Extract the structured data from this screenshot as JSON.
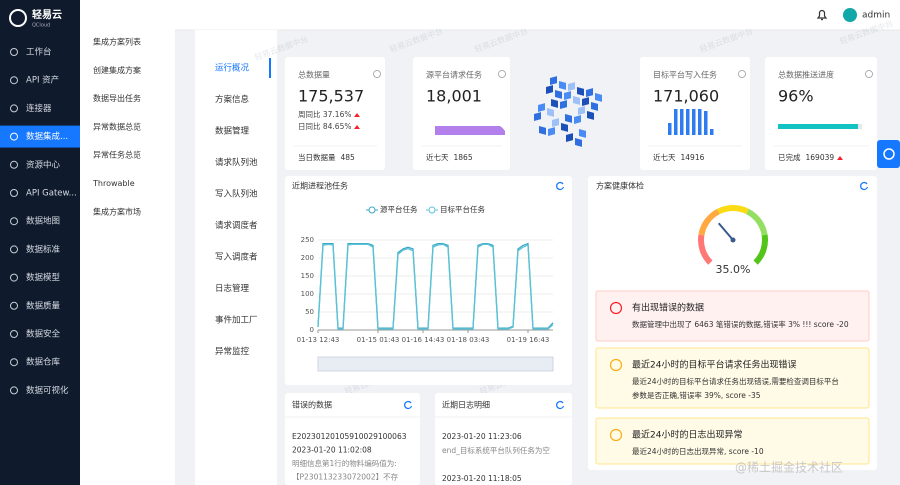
{
  "sidebar": {
    "logo": "轻易云",
    "logo_sub": "QCloud",
    "active": 3,
    "items": [
      "工作台",
      "API 资产",
      "连接器",
      "数据集成...",
      "资源中心",
      "API Gatew...",
      "数据地图",
      "数据标准",
      "数据模型",
      "数据质量",
      "数据安全",
      "数据仓库",
      "数据可视化"
    ]
  },
  "submenu": [
    "集成方案列表",
    "创建集成方案",
    "数据导出任务",
    "异常数据总览",
    "异常任务总览",
    "Throwable",
    "集成方案市场"
  ],
  "topbar": {
    "user": "admin"
  },
  "nav": {
    "active": 0,
    "items": [
      "运行概况",
      "方案信息",
      "数据管理",
      "请求队列池",
      "写入队列池",
      "请求调度者",
      "写入调度者",
      "日志管理",
      "事件加工厂",
      "异常监控"
    ]
  },
  "watermark": "轻易云数据中台",
  "stats": [
    {
      "title": "总数据量",
      "value": "175,537",
      "lines": [
        "周同比 37.16%",
        "日同比 84.65%"
      ],
      "footer_label": "当日数据量",
      "footer_value": "485"
    },
    {
      "title": "源平台请求任务",
      "value": "18,001",
      "footer_label": "近七天",
      "footer_value": "1865"
    },
    {
      "title": "目标平台写入任务",
      "value": "171,060",
      "footer_label": "近七天",
      "footer_value": "14916"
    },
    {
      "title": "总数据推送进度",
      "value": "96%",
      "footer_label": "已完成",
      "footer_value": "169039"
    }
  ],
  "chart_data": [
    {
      "type": "line",
      "title": "近期进程池任务",
      "categories": [
        "01-13 12:43",
        null,
        null,
        null,
        null,
        null,
        null,
        null,
        null,
        null,
        null,
        null,
        "01-15 01:43",
        null,
        null,
        null,
        null,
        null,
        null,
        null,
        null,
        "01-16 14:43",
        null,
        null,
        null,
        null,
        null,
        null,
        null,
        null,
        "01-18 03:43",
        null,
        null,
        null,
        null,
        null,
        null,
        null,
        null,
        null,
        null,
        null,
        "01-19 16:43",
        null,
        null,
        null,
        null,
        null
      ],
      "series": [
        {
          "name": "源平台任务",
          "color": "#3ba7c4",
          "values": [
            10,
            240,
            240,
            240,
            5,
            5,
            240,
            240,
            240,
            240,
            240,
            235,
            5,
            5,
            5,
            5,
            215,
            225,
            230,
            225,
            5,
            5,
            5,
            235,
            240,
            240,
            235,
            5,
            5,
            5,
            5,
            5,
            235,
            240,
            240,
            235,
            5,
            5,
            5,
            10,
            225,
            235,
            240,
            5,
            5,
            5,
            5,
            20
          ]
        },
        {
          "name": "目标平台任务",
          "color": "#5cc3d6",
          "values": [
            8,
            235,
            238,
            236,
            3,
            3,
            236,
            238,
            238,
            238,
            238,
            230,
            3,
            3,
            3,
            3,
            210,
            222,
            226,
            220,
            3,
            3,
            3,
            230,
            236,
            238,
            230,
            3,
            3,
            3,
            3,
            3,
            230,
            238,
            238,
            230,
            3,
            3,
            3,
            8,
            220,
            230,
            236,
            3,
            3,
            3,
            3,
            15
          ]
        }
      ],
      "ylim": [
        0,
        250
      ],
      "yticks": [
        0,
        50,
        100,
        150,
        200,
        250
      ],
      "grid": true
    },
    {
      "type": "gauge",
      "title": "方案健康体检",
      "value": 35,
      "value_label": "35.0%",
      "ylim": [
        0,
        100
      ]
    }
  ],
  "alerts": [
    {
      "level": "error",
      "title": "有出现错误的数据",
      "lines": [
        "数据管理中出现了 6463 笔错误的数据,错误率 3% !!! score -20"
      ]
    },
    {
      "level": "warning",
      "title": "最近24小时的目标平台请求任务出现错误",
      "lines": [
        "最近24小时的目标平台请求任务出现错误,需要检查调目标平台",
        "参数是否正确,错误率 39%, score -35"
      ]
    },
    {
      "level": "warning",
      "title": "最近24小时的日志出现异常",
      "lines": [
        "最近24小时的日志出现异常, score -10"
      ]
    }
  ],
  "error_data": {
    "title": "错误的数据",
    "lines": [
      "E20230120105910029100063",
      "2023-01-20 11:02:08",
      "明细信息第1行的物料编码值为:",
      "【P230113233072002】不存"
    ]
  },
  "logs": {
    "title": "近期日志明细",
    "lines": [
      "2023-01-20 11:23:06",
      "end_目标系统平台队列任务为空",
      "2023-01-20 11:18:05"
    ]
  },
  "credit": "@稀土掘金技术社区"
}
